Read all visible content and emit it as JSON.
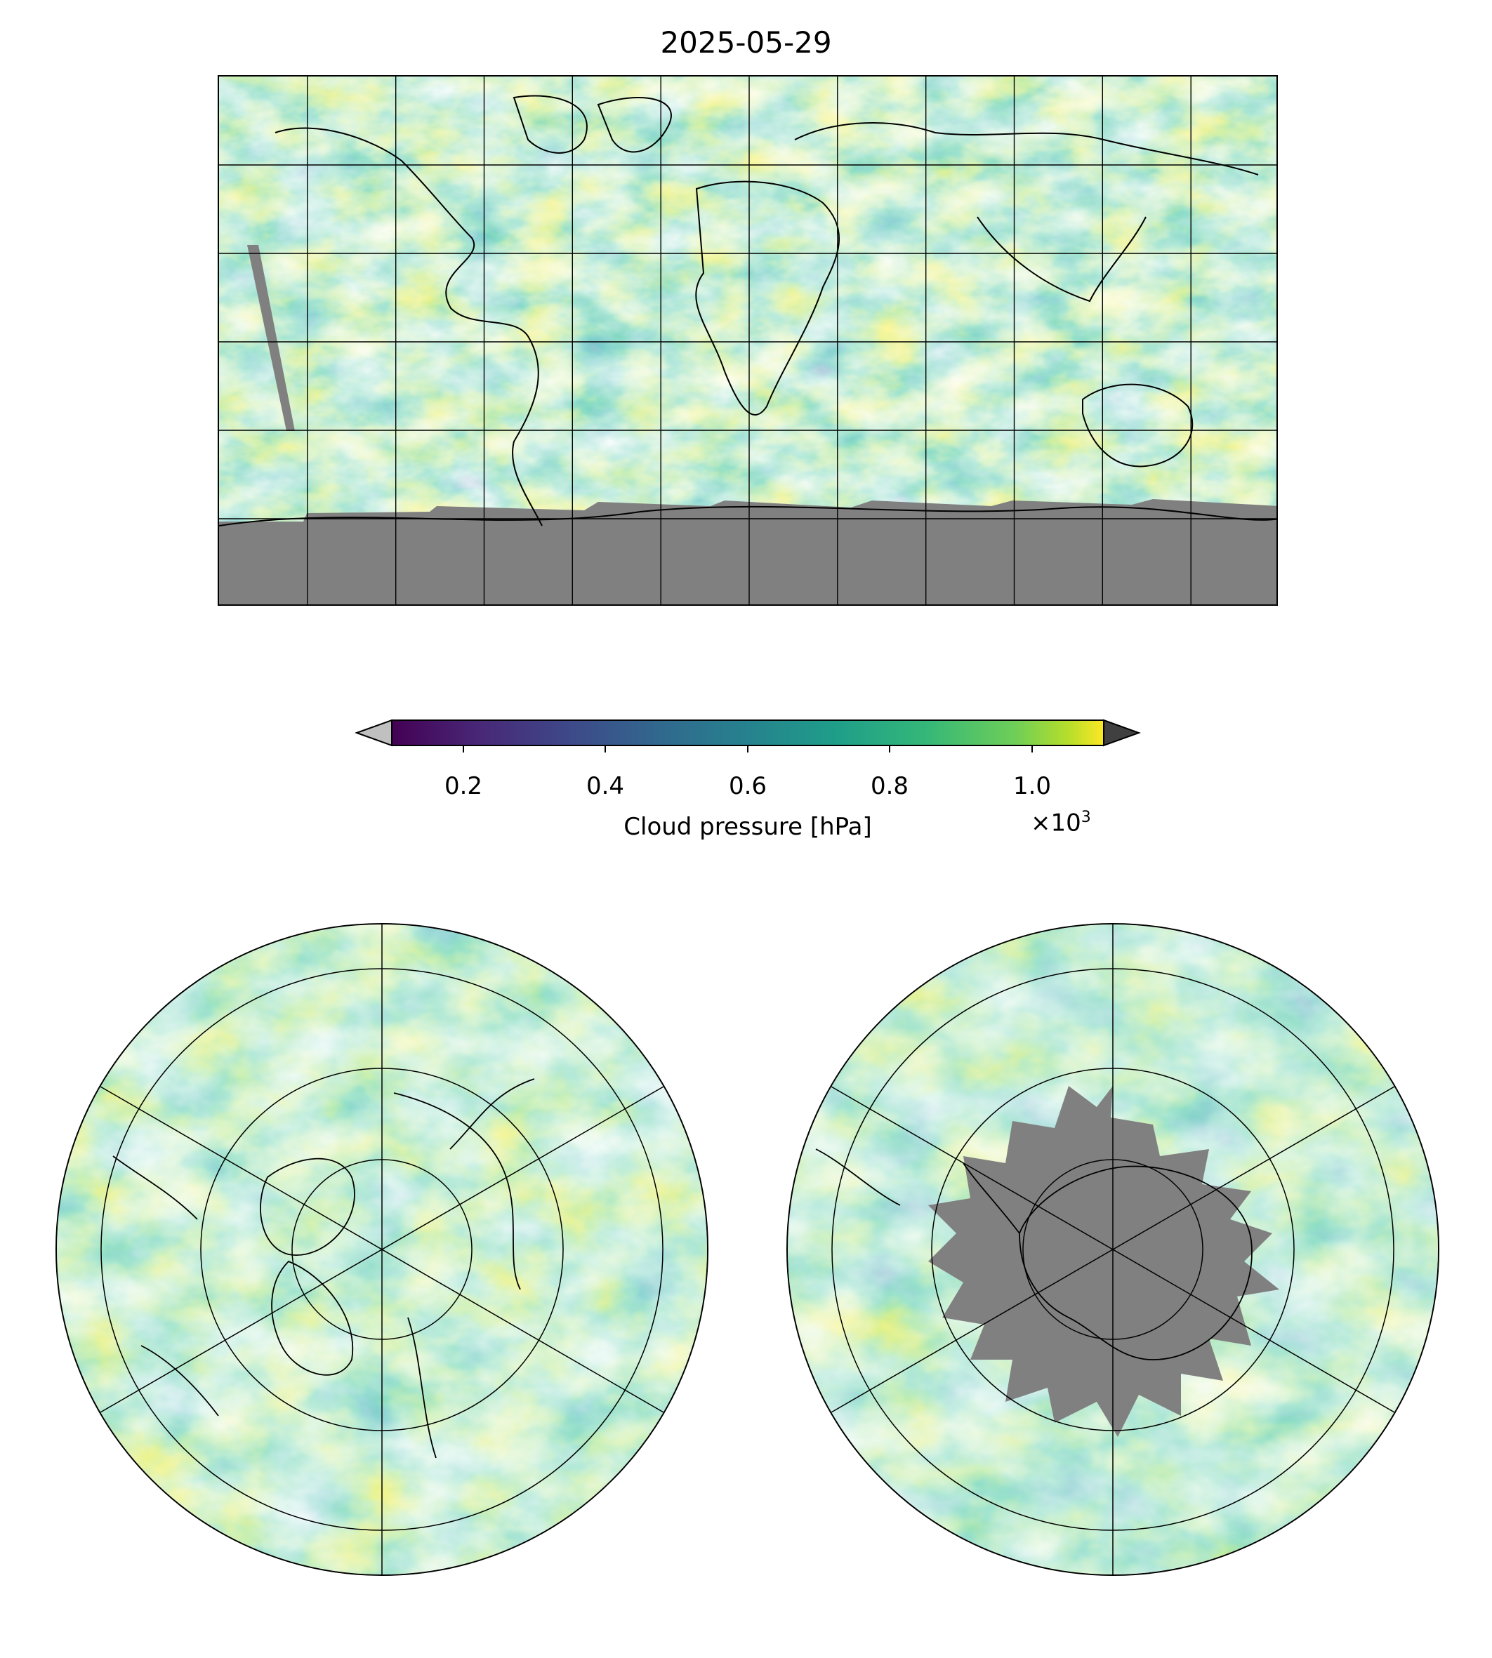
{
  "title": "2025-05-29",
  "colorbar": {
    "label": "Cloud pressure [hPa]",
    "ticks": [
      "0.2",
      "0.4",
      "0.6",
      "0.8",
      "1.0"
    ],
    "multiplier": "×10",
    "multiplier_exp": "3",
    "range": [
      100,
      1100
    ],
    "extend": "both",
    "colormap": "viridis",
    "under_color": "#c0c0c0",
    "over_color": "#404040"
  },
  "maps": {
    "global": {
      "projection": "PlateCarree",
      "missing_color": "#808080"
    },
    "north_polar": {
      "projection": "NorthPolarStereo"
    },
    "south_polar": {
      "projection": "SouthPolarStereo"
    }
  }
}
